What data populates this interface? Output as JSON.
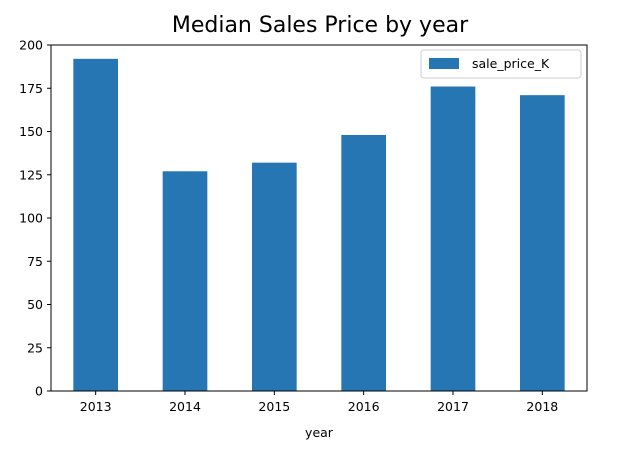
{
  "chart_data": {
    "type": "bar",
    "title": "Median Sales Price by year",
    "xlabel": "year",
    "ylabel": "",
    "categories": [
      "2013",
      "2014",
      "2015",
      "2016",
      "2017",
      "2018"
    ],
    "series": [
      {
        "name": "sale_price_K",
        "values": [
          192,
          127,
          132,
          148,
          176,
          171
        ],
        "color": "#2776b4"
      }
    ],
    "ylim": [
      0,
      200
    ],
    "yticks": [
      0,
      25,
      50,
      75,
      100,
      125,
      150,
      175,
      200
    ],
    "grid": false,
    "legend": "upper-right"
  }
}
